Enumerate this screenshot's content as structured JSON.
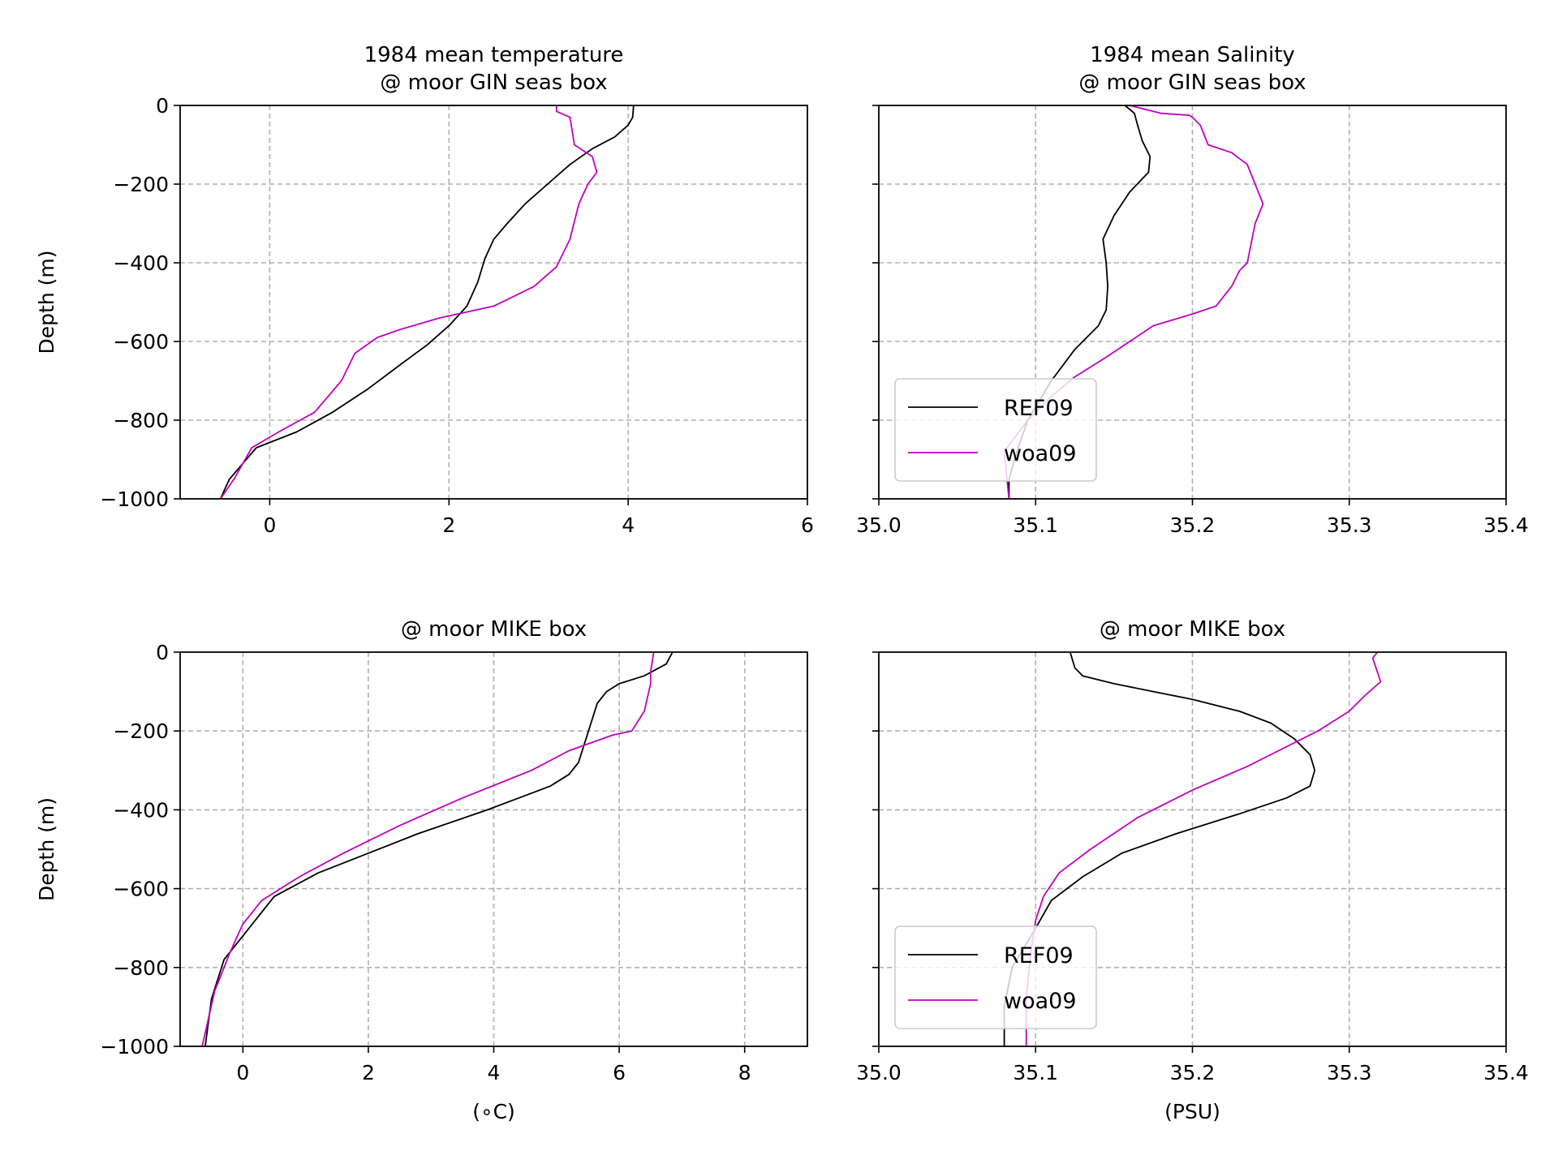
{
  "chart_data": [
    {
      "type": "line",
      "title": "1984 mean temperature\n@ moor GIN seas box",
      "xlabel": "",
      "ylabel": "Depth (m)",
      "xlim": [
        -1,
        6
      ],
      "ylim": [
        -1000,
        0
      ],
      "xticks": [
        "0",
        "2",
        "4",
        "6"
      ],
      "yticks": [
        "0",
        "−200",
        "−400",
        "−600",
        "−800",
        "−1000"
      ],
      "grid": true,
      "legend": false,
      "series": [
        {
          "name": "REF09",
          "color": "#000000",
          "x": [
            4.06,
            4.05,
            4.0,
            3.85,
            3.6,
            3.35,
            3.1,
            2.85,
            2.65,
            2.5,
            2.4,
            2.32,
            2.2,
            2.0,
            1.75,
            1.45,
            1.1,
            0.7,
            0.3,
            -0.15,
            -0.45,
            -0.55
          ],
          "y": [
            0,
            -30,
            -50,
            -80,
            -110,
            -150,
            -200,
            -250,
            -300,
            -340,
            -390,
            -450,
            -510,
            -560,
            -610,
            -660,
            -720,
            -780,
            -830,
            -870,
            -950,
            -1000
          ]
        },
        {
          "name": "woa09",
          "color": "#c000c0",
          "x": [
            3.2,
            3.2,
            3.35,
            3.4,
            3.6,
            3.65,
            3.55,
            3.45,
            3.35,
            3.2,
            2.95,
            2.5,
            1.9,
            1.45,
            1.2,
            0.95,
            0.8,
            0.5,
            0.1,
            -0.2,
            -0.4,
            -0.55
          ],
          "y": [
            0,
            -15,
            -30,
            -100,
            -130,
            -170,
            -200,
            -250,
            -340,
            -410,
            -460,
            -510,
            -540,
            -570,
            -590,
            -630,
            -700,
            -780,
            -830,
            -870,
            -950,
            -1000
          ]
        }
      ]
    },
    {
      "type": "line",
      "title": "1984 mean Salinity\n@ moor GIN seas box",
      "xlabel": "",
      "ylabel": "",
      "xlim": [
        35.0,
        35.4
      ],
      "ylim": [
        -1000,
        0
      ],
      "xticks": [
        "35.0",
        "35.1",
        "35.2",
        "35.3",
        "35.4"
      ],
      "grid": true,
      "legend": true,
      "legend_loc": "lower-left",
      "series": [
        {
          "name": "REF09",
          "color": "#000000",
          "x": [
            35.157,
            35.163,
            35.165,
            35.168,
            35.173,
            35.172,
            35.16,
            35.15,
            35.143,
            35.145,
            35.146,
            35.145,
            35.14,
            35.125,
            35.11,
            35.095,
            35.088,
            35.083,
            35.083
          ],
          "y": [
            0,
            -20,
            -50,
            -90,
            -130,
            -170,
            -220,
            -280,
            -340,
            -400,
            -460,
            -520,
            -560,
            -620,
            -700,
            -800,
            -880,
            -950,
            -1000
          ]
        },
        {
          "name": "woa09",
          "color": "#c000c0",
          "x": [
            35.16,
            35.18,
            35.198,
            35.2,
            35.205,
            35.21,
            35.225,
            35.235,
            35.24,
            35.245,
            35.24,
            35.235,
            35.23,
            35.225,
            35.215,
            35.2,
            35.175,
            35.145,
            35.125,
            35.11,
            35.095,
            35.08,
            35.083
          ],
          "y": [
            0,
            -20,
            -25,
            -30,
            -50,
            -100,
            -120,
            -150,
            -200,
            -250,
            -300,
            -400,
            -420,
            -460,
            -510,
            -530,
            -560,
            -640,
            -690,
            -740,
            -800,
            -880,
            -1000
          ]
        }
      ]
    },
    {
      "type": "line",
      "title": "@ moor MIKE box",
      "xlabel": "(∘C)",
      "ylabel": "Depth (m)",
      "xlim": [
        -1,
        9
      ],
      "ylim": [
        -1000,
        0
      ],
      "xticks": [
        "0",
        "2",
        "4",
        "6",
        "8"
      ],
      "yticks": [
        "0",
        "−200",
        "−400",
        "−600",
        "−800",
        "−1000"
      ],
      "grid": true,
      "legend": false,
      "series": [
        {
          "name": "REF09",
          "color": "#000000",
          "x": [
            6.85,
            6.75,
            6.4,
            6.0,
            5.8,
            5.65,
            5.55,
            5.45,
            5.35,
            5.2,
            4.9,
            4.4,
            3.9,
            2.8,
            2.0,
            1.2,
            0.5,
            0.1,
            -0.3,
            -0.5,
            -0.6
          ],
          "y": [
            0,
            -30,
            -60,
            -80,
            -100,
            -130,
            -180,
            -230,
            -280,
            -310,
            -340,
            -370,
            -400,
            -460,
            -510,
            -560,
            -620,
            -700,
            -780,
            -880,
            -1000
          ]
        },
        {
          "name": "woa09",
          "color": "#c000c0",
          "x": [
            6.55,
            6.5,
            6.5,
            6.4,
            6.2,
            5.9,
            5.2,
            4.6,
            3.5,
            2.5,
            1.6,
            0.9,
            0.3,
            0.0,
            -0.2,
            -0.45,
            -0.65
          ],
          "y": [
            0,
            -50,
            -80,
            -150,
            -200,
            -210,
            -250,
            -300,
            -370,
            -440,
            -510,
            -570,
            -630,
            -690,
            -760,
            -860,
            -1000
          ]
        }
      ]
    },
    {
      "type": "line",
      "title": "@ moor MIKE box",
      "xlabel": "(PSU)",
      "ylabel": "",
      "xlim": [
        35.0,
        35.4
      ],
      "ylim": [
        -1000,
        0
      ],
      "xticks": [
        "35.0",
        "35.1",
        "35.2",
        "35.3",
        "35.4"
      ],
      "grid": true,
      "legend": true,
      "legend_loc": "lower-left",
      "series": [
        {
          "name": "REF09",
          "color": "#000000",
          "x": [
            35.122,
            35.125,
            35.13,
            35.15,
            35.175,
            35.2,
            35.23,
            35.25,
            35.265,
            35.275,
            35.278,
            35.275,
            35.26,
            35.23,
            35.19,
            35.155,
            35.13,
            35.11,
            35.1,
            35.085,
            35.08,
            35.08
          ],
          "y": [
            0,
            -40,
            -60,
            -80,
            -100,
            -120,
            -150,
            -180,
            -220,
            -260,
            -300,
            -340,
            -370,
            -410,
            -460,
            -510,
            -570,
            -630,
            -700,
            -800,
            -900,
            -1000
          ]
        },
        {
          "name": "woa09",
          "color": "#c000c0",
          "x": [
            35.318,
            35.315,
            35.32,
            35.31,
            35.3,
            35.28,
            35.255,
            35.235,
            35.2,
            35.165,
            35.135,
            35.115,
            35.105,
            35.1,
            35.097,
            35.094,
            35.094
          ],
          "y": [
            0,
            -15,
            -75,
            -110,
            -150,
            -200,
            -250,
            -290,
            -350,
            -420,
            -500,
            -560,
            -620,
            -680,
            -760,
            -880,
            -1000
          ]
        }
      ]
    }
  ]
}
